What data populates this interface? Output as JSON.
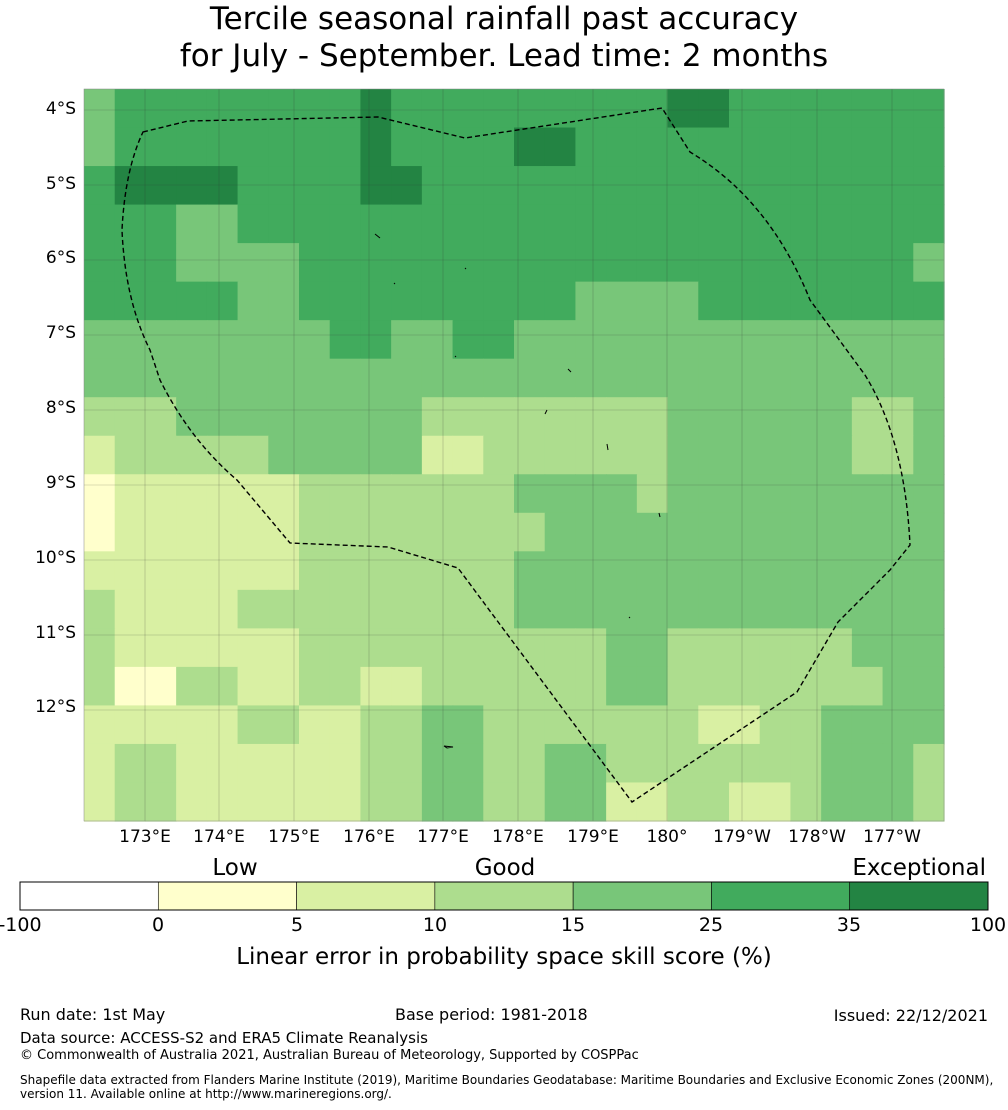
{
  "title": {
    "line1": "Tercile seasonal rainfall past accuracy",
    "line2": "for July - September. Lead time: 2 months"
  },
  "map": {
    "lon_labels": [
      "173°E",
      "174°E",
      "175°E",
      "176°E",
      "177°E",
      "178°E",
      "179°E",
      "180°",
      "179°W",
      "178°W",
      "177°W"
    ],
    "lat_labels": [
      "4°S",
      "5°S",
      "6°S",
      "7°S",
      "8°S",
      "9°S",
      "10°S",
      "11°S",
      "12°S"
    ],
    "eez_boundary": "dashed"
  },
  "grid": {
    "level_colors": [
      "#ffffcc",
      "#d9f0a3",
      "#addd8e",
      "#78c679",
      "#41ab5d",
      "#238443"
    ],
    "rows": [
      [
        3,
        4,
        4,
        4,
        4,
        4,
        4,
        4,
        4,
        5,
        4,
        4,
        4,
        4,
        4,
        4,
        4,
        4,
        4,
        5,
        5,
        4,
        4,
        4,
        4,
        4,
        4,
        4
      ],
      [
        3,
        4,
        4,
        4,
        4,
        4,
        4,
        4,
        4,
        5,
        4,
        4,
        4,
        4,
        5,
        5,
        4,
        4,
        4,
        4,
        4,
        4,
        4,
        4,
        4,
        4,
        4,
        4
      ],
      [
        4,
        5,
        5,
        5,
        5,
        4,
        4,
        4,
        4,
        5,
        5,
        4,
        4,
        4,
        4,
        4,
        4,
        4,
        4,
        4,
        4,
        4,
        4,
        4,
        4,
        4,
        4,
        4
      ],
      [
        4,
        4,
        4,
        3,
        3,
        4,
        4,
        4,
        4,
        4,
        4,
        4,
        4,
        4,
        4,
        4,
        4,
        4,
        4,
        4,
        4,
        4,
        4,
        4,
        4,
        4,
        4,
        4
      ],
      [
        4,
        4,
        4,
        3,
        3,
        3,
        3,
        4,
        4,
        4,
        4,
        4,
        4,
        4,
        4,
        4,
        4,
        4,
        4,
        4,
        4,
        4,
        4,
        4,
        4,
        4,
        4,
        3
      ],
      [
        4,
        4,
        4,
        4,
        4,
        3,
        3,
        4,
        4,
        4,
        4,
        4,
        4,
        4,
        4,
        4,
        3,
        3,
        3,
        3,
        4,
        4,
        4,
        4,
        4,
        4,
        4,
        4
      ],
      [
        3,
        3,
        3,
        3,
        3,
        3,
        3,
        3,
        4,
        4,
        3,
        3,
        4,
        4,
        3,
        3,
        3,
        3,
        3,
        3,
        3,
        3,
        3,
        3,
        3,
        3,
        3,
        3
      ],
      [
        3,
        3,
        3,
        3,
        3,
        3,
        3,
        3,
        3,
        3,
        3,
        3,
        3,
        3,
        3,
        3,
        3,
        3,
        3,
        3,
        3,
        3,
        3,
        3,
        3,
        3,
        3,
        3
      ],
      [
        2,
        2,
        2,
        3,
        3,
        3,
        3,
        3,
        3,
        3,
        3,
        2,
        2,
        2,
        2,
        2,
        2,
        2,
        2,
        3,
        3,
        3,
        3,
        3,
        3,
        2,
        2,
        3
      ],
      [
        1,
        2,
        2,
        2,
        2,
        2,
        3,
        3,
        3,
        3,
        3,
        1,
        1,
        2,
        2,
        2,
        2,
        2,
        2,
        3,
        3,
        3,
        3,
        3,
        3,
        2,
        2,
        3
      ],
      [
        0,
        1,
        1,
        1,
        1,
        1,
        1,
        2,
        2,
        2,
        2,
        2,
        2,
        2,
        3,
        3,
        3,
        3,
        2,
        3,
        3,
        3,
        3,
        3,
        3,
        3,
        3,
        3
      ],
      [
        0,
        1,
        1,
        1,
        1,
        1,
        1,
        2,
        2,
        2,
        2,
        2,
        2,
        2,
        2,
        3,
        3,
        3,
        3,
        3,
        3,
        3,
        3,
        3,
        3,
        3,
        3,
        3
      ],
      [
        1,
        1,
        1,
        1,
        1,
        1,
        1,
        2,
        2,
        2,
        2,
        2,
        2,
        2,
        3,
        3,
        3,
        3,
        3,
        3,
        3,
        3,
        3,
        3,
        3,
        3,
        3,
        3
      ],
      [
        2,
        1,
        1,
        1,
        1,
        2,
        2,
        2,
        2,
        2,
        2,
        2,
        2,
        2,
        3,
        3,
        3,
        3,
        3,
        3,
        3,
        3,
        3,
        3,
        3,
        3,
        3,
        3
      ],
      [
        2,
        1,
        1,
        1,
        1,
        1,
        1,
        2,
        2,
        2,
        2,
        2,
        2,
        2,
        2,
        2,
        2,
        3,
        3,
        2,
        2,
        2,
        2,
        2,
        2,
        3,
        3,
        3
      ],
      [
        2,
        0,
        0,
        2,
        2,
        1,
        1,
        2,
        2,
        1,
        1,
        2,
        2,
        2,
        2,
        2,
        2,
        3,
        3,
        2,
        2,
        2,
        2,
        2,
        2,
        2,
        3,
        3
      ],
      [
        1,
        1,
        1,
        1,
        1,
        2,
        2,
        1,
        1,
        2,
        2,
        3,
        3,
        2,
        2,
        2,
        2,
        2,
        2,
        2,
        1,
        1,
        2,
        2,
        3,
        3,
        3,
        3
      ],
      [
        1,
        2,
        2,
        1,
        1,
        1,
        1,
        1,
        1,
        2,
        2,
        3,
        3,
        2,
        2,
        3,
        3,
        2,
        2,
        2,
        2,
        2,
        2,
        2,
        3,
        3,
        3,
        2
      ],
      [
        1,
        2,
        2,
        1,
        1,
        1,
        1,
        1,
        1,
        2,
        2,
        3,
        3,
        2,
        2,
        3,
        3,
        1,
        1,
        2,
        2,
        1,
        1,
        2,
        3,
        3,
        3,
        2
      ]
    ]
  },
  "colorbar": {
    "category_labels": [
      "Low",
      "Good",
      "Exceptional"
    ],
    "ticks": [
      "-100",
      "0",
      "5",
      "10",
      "15",
      "25",
      "35",
      "100"
    ],
    "colors": [
      "#ffffff",
      "#ffffcc",
      "#d9f0a3",
      "#addd8e",
      "#78c679",
      "#41ab5d",
      "#238443"
    ],
    "label": "Linear error in probability space skill score (%)"
  },
  "footer": {
    "run_date": "Run date: 1st May",
    "base_period": "Base period: 1981-2018",
    "issued": "Issued: 22/12/2021",
    "data_source": "Data source: ACCESS-S2 and ERA5 Climate Reanalysis",
    "copyright": "© Commonwealth of Australia 2021, Australian Bureau of Meteorology, Supported by COSPPac",
    "shapefile": "Shapefile data extracted from Flanders Marine Institute (2019), Maritime Boundaries Geodatabase: Maritime Boundaries and Exclusive Economic Zones (200NM), version 11. Available online at http://www.marineregions.org/."
  }
}
